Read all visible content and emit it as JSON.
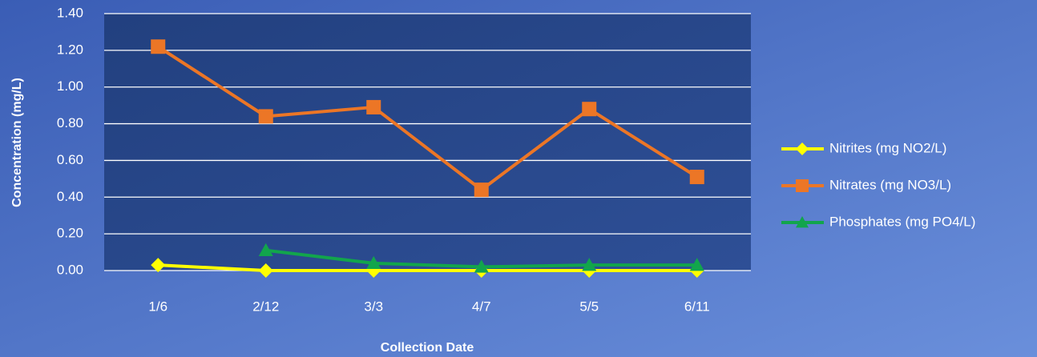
{
  "chart_data": {
    "type": "line",
    "x_label": "Collection Date",
    "y_label": "Concentration (mg/L)",
    "categories": [
      "1/6",
      "2/12",
      "3/3",
      "4/7",
      "5/5",
      "6/11"
    ],
    "series": [
      {
        "name": "Nitrites (mg NO2/L)",
        "color": "#ffff00",
        "marker": "diamond",
        "values": [
          0.03,
          0,
          0,
          0,
          0,
          0
        ]
      },
      {
        "name": "Nitrates (mg NO3/L)",
        "color": "#ec7626",
        "marker": "square",
        "values": [
          1.22,
          0.84,
          0.89,
          0.44,
          0.88,
          0.51
        ]
      },
      {
        "name": "Phosphates (mg PO4/L)",
        "color": "#12a54c",
        "marker": "triangle",
        "values": [
          null,
          0.11,
          0.04,
          0.02,
          0.03,
          0.03
        ]
      }
    ],
    "ylim": [
      0,
      1.4
    ],
    "yticks": [
      {
        "value": 0,
        "label": "0.00"
      },
      {
        "value": 0.2,
        "label": "0.20"
      },
      {
        "value": 0.4,
        "label": "0.40"
      },
      {
        "value": 0.6,
        "label": "0.60"
      },
      {
        "value": 0.8,
        "label": "0.80"
      },
      {
        "value": 1.0,
        "label": "1.00"
      },
      {
        "value": 1.2,
        "label": "1.20"
      },
      {
        "value": 1.4,
        "label": "1.40"
      }
    ],
    "grid": true,
    "legend": "right"
  }
}
